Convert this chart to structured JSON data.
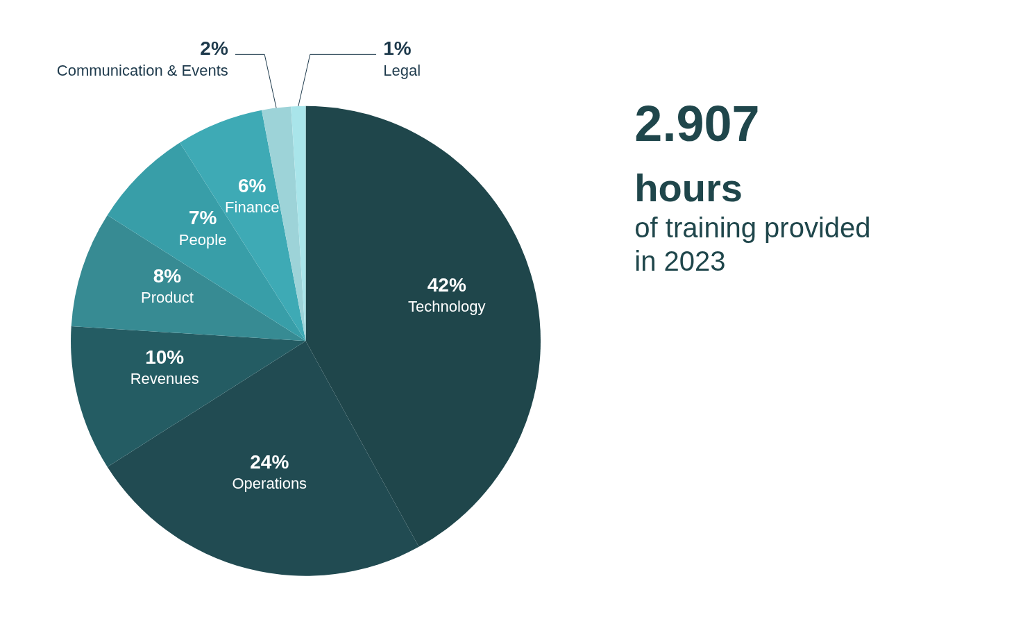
{
  "chart_data": {
    "type": "pie",
    "categories": [
      "Technology",
      "Operations",
      "Revenues",
      "Product",
      "People",
      "Finance",
      "Communication & Events",
      "Legal"
    ],
    "values": [
      42,
      24,
      10,
      8,
      7,
      6,
      2,
      1
    ],
    "colors": [
      "#1f464b",
      "#214b52",
      "#245c63",
      "#378b93",
      "#389ea8",
      "#3eaab5",
      "#9dd3d8",
      "#a9e5ea"
    ],
    "value_labels": [
      "42%",
      "24%",
      "10%",
      "8%",
      "7%",
      "6%",
      "2%",
      "1%"
    ],
    "annotations": [
      "2.907",
      "hours",
      "of training provided",
      "in 2023"
    ]
  }
}
